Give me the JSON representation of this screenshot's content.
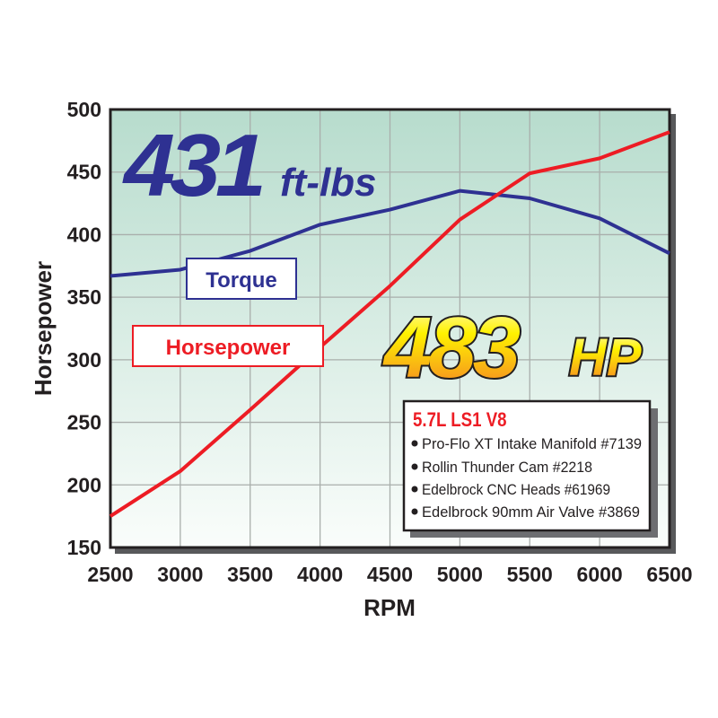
{
  "chart_data": {
    "type": "line",
    "xlabel": "RPM",
    "ylabel": "Horsepower",
    "x": [
      2500,
      3000,
      3500,
      4000,
      4500,
      5000,
      5500,
      6000,
      6500
    ],
    "xlim": [
      2500,
      6500
    ],
    "ylim": [
      150,
      500
    ],
    "xticks": [
      "2500",
      "3000",
      "3500",
      "4000",
      "4500",
      "5000",
      "5500",
      "6000",
      "6500"
    ],
    "yticks": [
      "500",
      "450",
      "400",
      "350",
      "300",
      "250",
      "200",
      "150"
    ],
    "grid": true,
    "series": [
      {
        "name": "Torque",
        "color": "#2e3192",
        "values": [
          367,
          372,
          387,
          408,
          420,
          435,
          429,
          413,
          385
        ]
      },
      {
        "name": "Horsepower",
        "color": "#ed1c24",
        "values": [
          175,
          211,
          260,
          310,
          359,
          412,
          449,
          461,
          482
        ]
      }
    ],
    "annotations": {
      "torque_peak_value": "431",
      "torque_peak_unit": "ft-lbs",
      "hp_peak_value": "483",
      "hp_peak_unit": "HP"
    },
    "info_box": {
      "title": "5.7L LS1 V8",
      "items": [
        "Pro-Flo XT Intake Manifold #7139",
        "Rollin Thunder Cam #2218",
        "Edelbrock CNC Heads #61969",
        "Edelbrock 90mm Air Valve #3869"
      ]
    },
    "colors": {
      "plot_bg_top": "#b7dccd",
      "plot_bg_bottom": "#fafdfb",
      "grid": "#a9aeab"
    }
  }
}
